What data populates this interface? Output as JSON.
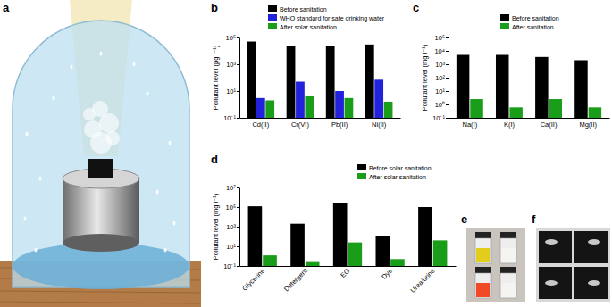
{
  "chart_data": [
    {
      "type": "bar",
      "title": "b",
      "y_label": "Pollutant level (μg l⁻¹)",
      "categories": [
        "Cd(II)",
        "Cr(VI)",
        "Pb(II)",
        "Ni(II)"
      ],
      "series": [
        {
          "name": "Before sanitation",
          "color": "#000000",
          "values": [
            50000,
            25000,
            25000,
            30000
          ]
        },
        {
          "name": "WHO standard for safe drinking water",
          "color": "#2222dd",
          "values": [
            3,
            50,
            10,
            70
          ]
        },
        {
          "name": "After solar sanitation",
          "color": "#1a9e1a",
          "values": [
            2,
            4,
            3,
            1.6
          ]
        }
      ],
      "log": "y",
      "ylim": [
        0.1,
        100000
      ],
      "yticks": [
        {
          "value": 0.1,
          "label": "10⁻¹"
        },
        {
          "value": 10,
          "label": "10¹"
        },
        {
          "value": 1000,
          "label": "10³"
        },
        {
          "value": 100000,
          "label": "10⁵"
        }
      ],
      "grid": false,
      "legend": "top"
    },
    {
      "type": "bar",
      "title": "c",
      "y_label": "Pollutant level (mg l⁻¹)",
      "categories": [
        "Na(I)",
        "K(I)",
        "Ca(II)",
        "Mg(II)"
      ],
      "series": [
        {
          "name": "Before sanitation",
          "color": "#000000",
          "values": [
            5000,
            5000,
            3500,
            2000
          ]
        },
        {
          "name": "After sanitation",
          "color": "#1a9e1a",
          "values": [
            2.5,
            0.6,
            2.5,
            0.6
          ]
        }
      ],
      "log": "y",
      "ylim": [
        0.1,
        100000
      ],
      "yticks": [
        {
          "value": 0.1,
          "label": "10⁻¹"
        },
        {
          "value": 1,
          "label": "10⁰"
        },
        {
          "value": 10,
          "label": "10¹"
        },
        {
          "value": 100,
          "label": "10²"
        },
        {
          "value": 1000,
          "label": "10³"
        },
        {
          "value": 10000,
          "label": "10⁴"
        },
        {
          "value": 100000,
          "label": "10⁵"
        }
      ],
      "grid": false,
      "legend": "top"
    },
    {
      "type": "bar",
      "title": "d",
      "y_label": "Pollutant level (mg l⁻¹)",
      "categories": [
        "Glycerine",
        "Detergent",
        "EG",
        "Dye",
        "Urea/urine"
      ],
      "series": [
        {
          "name": "Before solar sanitation",
          "color": "#000000",
          "values": [
            120000,
            2000,
            250000,
            100,
            100000
          ]
        },
        {
          "name": "After solar sanitation",
          "color": "#1a9e1a",
          "values": [
            1.2,
            0.25,
            25,
            0.5,
            40
          ]
        }
      ],
      "log": "y",
      "ylim": [
        0.1,
        10000000
      ],
      "yticks": [
        {
          "value": 0.1,
          "label": "10⁻¹"
        },
        {
          "value": 10,
          "label": "10¹"
        },
        {
          "value": 1000,
          "label": "10³"
        },
        {
          "value": 100000,
          "label": "10⁵"
        },
        {
          "value": 10000000,
          "label": "10⁷"
        }
      ],
      "grid": false,
      "legend": "top"
    }
  ],
  "illustration_panels": [
    {
      "label": "a"
    },
    {
      "label": "e"
    },
    {
      "label": "f"
    }
  ]
}
